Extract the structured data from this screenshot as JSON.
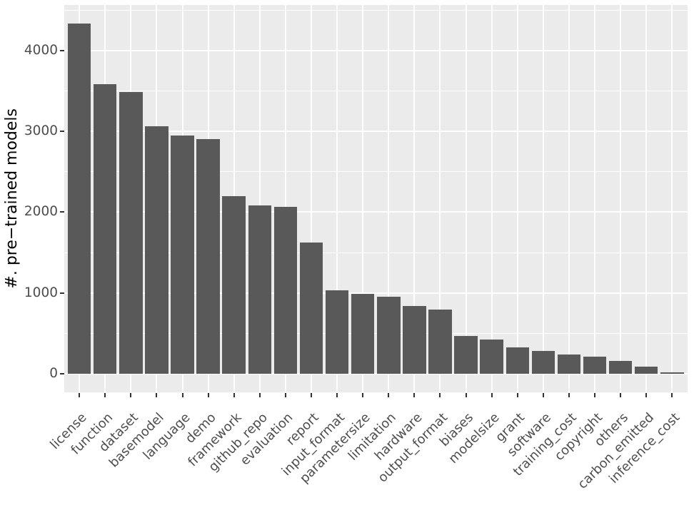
{
  "chart_data": {
    "type": "bar",
    "title": "",
    "xlabel": "",
    "ylabel": "#. pre−trained models",
    "categories": [
      "license",
      "function",
      "dataset",
      "basemodel",
      "language",
      "demo",
      "framework",
      "github_repo",
      "evaluation",
      "report",
      "input_format",
      "parametersize",
      "limitation",
      "hardware",
      "output_format",
      "biases",
      "modelsize",
      "grant",
      "software",
      "training_cost",
      "copyright",
      "others",
      "carbon_emitted",
      "inference_cost"
    ],
    "values": [
      4330,
      3580,
      3490,
      3060,
      2950,
      2900,
      2200,
      2080,
      2065,
      1620,
      1035,
      990,
      955,
      835,
      790,
      470,
      420,
      325,
      280,
      235,
      210,
      155,
      85,
      20
    ],
    "yticks": [
      0,
      1000,
      2000,
      3000,
      4000
    ],
    "minor_gridlines": [
      500,
      1500,
      2500,
      3500,
      4500
    ],
    "ylim": [
      -240,
      4560
    ],
    "grid": "major+minor, white on grey panel",
    "legend": "none",
    "x_label_angle_deg": 45,
    "colors": {
      "bar": "#595959",
      "panel_bg": "#EBEBEB",
      "grid": "#FFFFFF",
      "axis_text": "#4D4D4D",
      "axis_title": "#000000",
      "tick": "#333333",
      "background": "#FFFFFF"
    }
  }
}
